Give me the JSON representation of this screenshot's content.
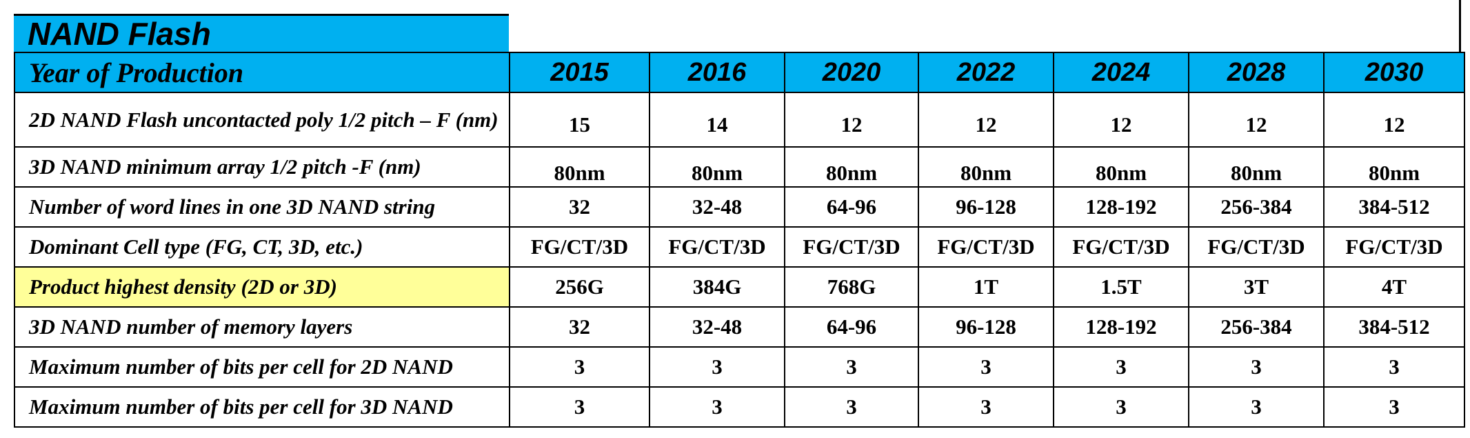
{
  "title": "NAND Flash",
  "header": {
    "row_label": "Year of Production",
    "years": [
      "2015",
      "2016",
      "2020",
      "2022",
      "2024",
      "2028",
      "2030"
    ]
  },
  "rows": [
    {
      "label": "2D NAND Flash uncontacted poly 1/2 pitch  – F (nm)",
      "values": [
        "15",
        "14",
        "12",
        "12",
        "12",
        "12",
        "12"
      ]
    },
    {
      "label": "3D NAND minimum array 1/2 pitch -F (nm)",
      "values": [
        "80nm",
        "80nm",
        "80nm",
        "80nm",
        "80nm",
        "80nm",
        "80nm"
      ]
    },
    {
      "label": "Number of word lines in one 3D NAND string",
      "values": [
        "32",
        "32-48",
        "64-96",
        "96-128",
        "128-192",
        "256-384",
        "384-512"
      ]
    },
    {
      "label": "Dominant Cell type (FG, CT, 3D, etc.)",
      "values": [
        "FG/CT/3D",
        "FG/CT/3D",
        "FG/CT/3D",
        "FG/CT/3D",
        "FG/CT/3D",
        "FG/CT/3D",
        "FG/CT/3D"
      ]
    },
    {
      "label": "Product highest density (2D or 3D)",
      "values": [
        "256G",
        "384G",
        "768G",
        "1T",
        "1.5T",
        "3T",
        "4T"
      ]
    },
    {
      "label": "3D NAND number of memory layers",
      "values": [
        "32",
        "32-48",
        "64-96",
        "96-128",
        "128-192",
        "256-384",
        "384-512"
      ]
    },
    {
      "label": "Maximum number of bits per cell for 2D NAND",
      "values": [
        "3",
        "3",
        "3",
        "3",
        "3",
        "3",
        "3"
      ]
    },
    {
      "label": "Maximum number of bits per cell for 3D NAND",
      "values": [
        "3",
        "3",
        "3",
        "3",
        "3",
        "3",
        "3"
      ]
    }
  ],
  "colors": {
    "header_bg": "#00b0f0",
    "highlight_bg": "#ffff99",
    "border": "#000000"
  }
}
